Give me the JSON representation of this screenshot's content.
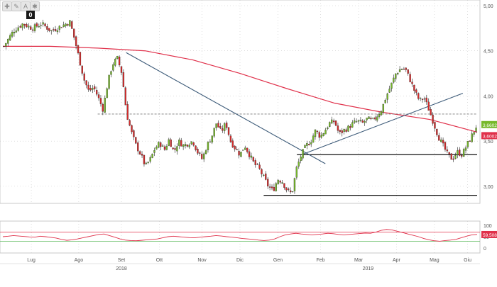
{
  "toolbar": {
    "buttons": [
      {
        "name": "crosshair-icon",
        "glyph": "✚"
      },
      {
        "name": "pen-icon",
        "glyph": "✎"
      },
      {
        "name": "text-icon",
        "glyph": "A"
      },
      {
        "name": "settings-icon",
        "glyph": "✱"
      }
    ],
    "badge": "0"
  },
  "colors": {
    "up": "#76b82a",
    "down": "#d62b2b",
    "ma": "#e0304a",
    "trend": "#3c5a78",
    "grid": "#c8c8c8",
    "axis_text": "#555555",
    "osc": "#e0304a",
    "osc_upper": "#e0304a",
    "osc_lower": "#5cb85c",
    "last_tag": "#76b82a",
    "ma_tag": "#e0304a"
  },
  "chart_data": [
    {
      "type": "candlestick",
      "title": "",
      "ylim": [
        2.85,
        5.0
      ],
      "y_ticks": [
        "5,00",
        "4,50",
        "4,00",
        "3,50",
        "3,00"
      ],
      "y_tick_values": [
        5.0,
        4.5,
        4.0,
        3.5,
        3.0
      ],
      "x_month_labels": [
        "Lug",
        "Ago",
        "Set",
        "Ott",
        "Nov",
        "Dic",
        "Gen",
        "Feb",
        "Mar",
        "Apr",
        "Mag",
        "Giu"
      ],
      "x_month_positions": [
        0.06,
        0.16,
        0.25,
        0.33,
        0.42,
        0.5,
        0.58,
        0.67,
        0.75,
        0.83,
        0.91,
        0.98
      ],
      "x_year_labels": [
        "2018",
        "2019"
      ],
      "x_year_positions": [
        0.25,
        0.77
      ],
      "last_price_label": "3,6602",
      "last_price": 3.66,
      "ma_label": "3,60025",
      "ma_value": 3.6,
      "close_path": [
        [
          0,
          4.55
        ],
        [
          2,
          4.72
        ],
        [
          4,
          4.8
        ],
        [
          6,
          4.75
        ],
        [
          8,
          4.8
        ],
        [
          10,
          4.72
        ],
        [
          12,
          4.77
        ],
        [
          14,
          4.82
        ],
        [
          15,
          4.62
        ],
        [
          16,
          4.4
        ],
        [
          17,
          4.18
        ],
        [
          18,
          4.05
        ],
        [
          19,
          4.1
        ],
        [
          20,
          3.98
        ],
        [
          21,
          3.85
        ],
        [
          22,
          4.15
        ],
        [
          23,
          4.35
        ],
        [
          24,
          4.42
        ],
        [
          25,
          4.25
        ],
        [
          26,
          3.8
        ],
        [
          27,
          3.6
        ],
        [
          28,
          3.45
        ],
        [
          29,
          3.35
        ],
        [
          30,
          3.22
        ],
        [
          31,
          3.3
        ],
        [
          32,
          3.42
        ],
        [
          33,
          3.48
        ],
        [
          34,
          3.4
        ],
        [
          35,
          3.52
        ],
        [
          36,
          3.38
        ],
        [
          37,
          3.5
        ],
        [
          38,
          3.45
        ],
        [
          40,
          3.5
        ],
        [
          41,
          3.38
        ],
        [
          42,
          3.3
        ],
        [
          43,
          3.45
        ],
        [
          44,
          3.55
        ],
        [
          45,
          3.7
        ],
        [
          46,
          3.6
        ],
        [
          47,
          3.7
        ],
        [
          48,
          3.5
        ],
        [
          49,
          3.42
        ],
        [
          50,
          3.35
        ],
        [
          51,
          3.45
        ],
        [
          52,
          3.35
        ],
        [
          53,
          3.25
        ],
        [
          54,
          3.2
        ],
        [
          55,
          3.1
        ],
        [
          56,
          3.0
        ],
        [
          57,
          2.95
        ],
        [
          58,
          3.08
        ],
        [
          59,
          3.05
        ],
        [
          60,
          2.95
        ],
        [
          61,
          2.92
        ],
        [
          62,
          3.2
        ],
        [
          63,
          3.35
        ],
        [
          64,
          3.45
        ],
        [
          65,
          3.5
        ],
        [
          66,
          3.62
        ],
        [
          67,
          3.55
        ],
        [
          68,
          3.62
        ],
        [
          69,
          3.7
        ],
        [
          70,
          3.72
        ],
        [
          71,
          3.58
        ],
        [
          72,
          3.62
        ],
        [
          73,
          3.65
        ],
        [
          74,
          3.7
        ],
        [
          75,
          3.72
        ],
        [
          76,
          3.7
        ],
        [
          77,
          3.75
        ],
        [
          78,
          3.72
        ],
        [
          79,
          3.78
        ],
        [
          80,
          3.85
        ],
        [
          81,
          4.0
        ],
        [
          82,
          4.12
        ],
        [
          83,
          4.25
        ],
        [
          84,
          4.3
        ],
        [
          85,
          4.3
        ],
        [
          86,
          4.18
        ],
        [
          87,
          4.05
        ],
        [
          88,
          3.95
        ],
        [
          89,
          3.98
        ],
        [
          90,
          3.85
        ],
        [
          91,
          3.7
        ],
        [
          92,
          3.55
        ],
        [
          93,
          3.45
        ],
        [
          94,
          3.35
        ],
        [
          95,
          3.3
        ],
        [
          96,
          3.38
        ],
        [
          97,
          3.35
        ],
        [
          98,
          3.45
        ],
        [
          99,
          3.55
        ],
        [
          100,
          3.66
        ]
      ],
      "ma_path": [
        [
          0,
          4.55
        ],
        [
          10,
          4.55
        ],
        [
          20,
          4.53
        ],
        [
          30,
          4.5
        ],
        [
          40,
          4.4
        ],
        [
          50,
          4.25
        ],
        [
          60,
          4.08
        ],
        [
          70,
          3.92
        ],
        [
          80,
          3.82
        ],
        [
          90,
          3.74
        ],
        [
          100,
          3.6
        ]
      ],
      "trendlines": [
        {
          "from": [
            26,
            4.48
          ],
          "to": [
            68,
            3.25
          ],
          "style": "solid",
          "color_key": "trend"
        },
        {
          "from": [
            63,
            3.35
          ],
          "to": [
            97,
            4.03
          ],
          "style": "solid",
          "color_key": "trend"
        }
      ],
      "hlines": [
        {
          "y": 3.8,
          "x0": 20,
          "x1": 100,
          "style": "dashed"
        },
        {
          "y": 3.35,
          "x0": 62,
          "x1": 100,
          "style": "solid"
        },
        {
          "y": 2.9,
          "x0": 55,
          "x1": 100,
          "style": "solid"
        }
      ]
    },
    {
      "type": "line",
      "title": "",
      "ylim": [
        0,
        100
      ],
      "y_ticks": [
        "100",
        "50",
        "0"
      ],
      "y_tick_values": [
        100,
        50,
        0
      ],
      "upper_band": 70,
      "lower_band": 30,
      "last_label": "59,5082",
      "last_value": 59.51,
      "values": [
        50,
        52,
        55,
        53,
        51,
        49,
        48,
        52,
        50,
        47,
        44,
        38,
        34,
        36,
        40,
        45,
        50,
        55,
        60,
        62,
        55,
        48,
        40,
        35,
        33,
        32,
        34,
        36,
        38,
        40,
        45,
        50,
        52,
        50,
        48,
        46,
        45,
        48,
        50,
        52,
        55,
        53,
        50,
        48,
        45,
        42,
        40,
        38,
        35,
        33,
        35,
        40,
        50,
        58,
        62,
        65,
        62,
        60,
        58,
        60,
        62,
        65,
        63,
        60,
        58,
        60,
        62,
        64,
        66,
        65,
        70,
        78,
        82,
        80,
        74,
        68,
        62,
        56,
        50,
        42,
        36,
        32,
        30,
        33,
        35,
        38,
        45,
        52,
        58,
        60
      ]
    }
  ]
}
